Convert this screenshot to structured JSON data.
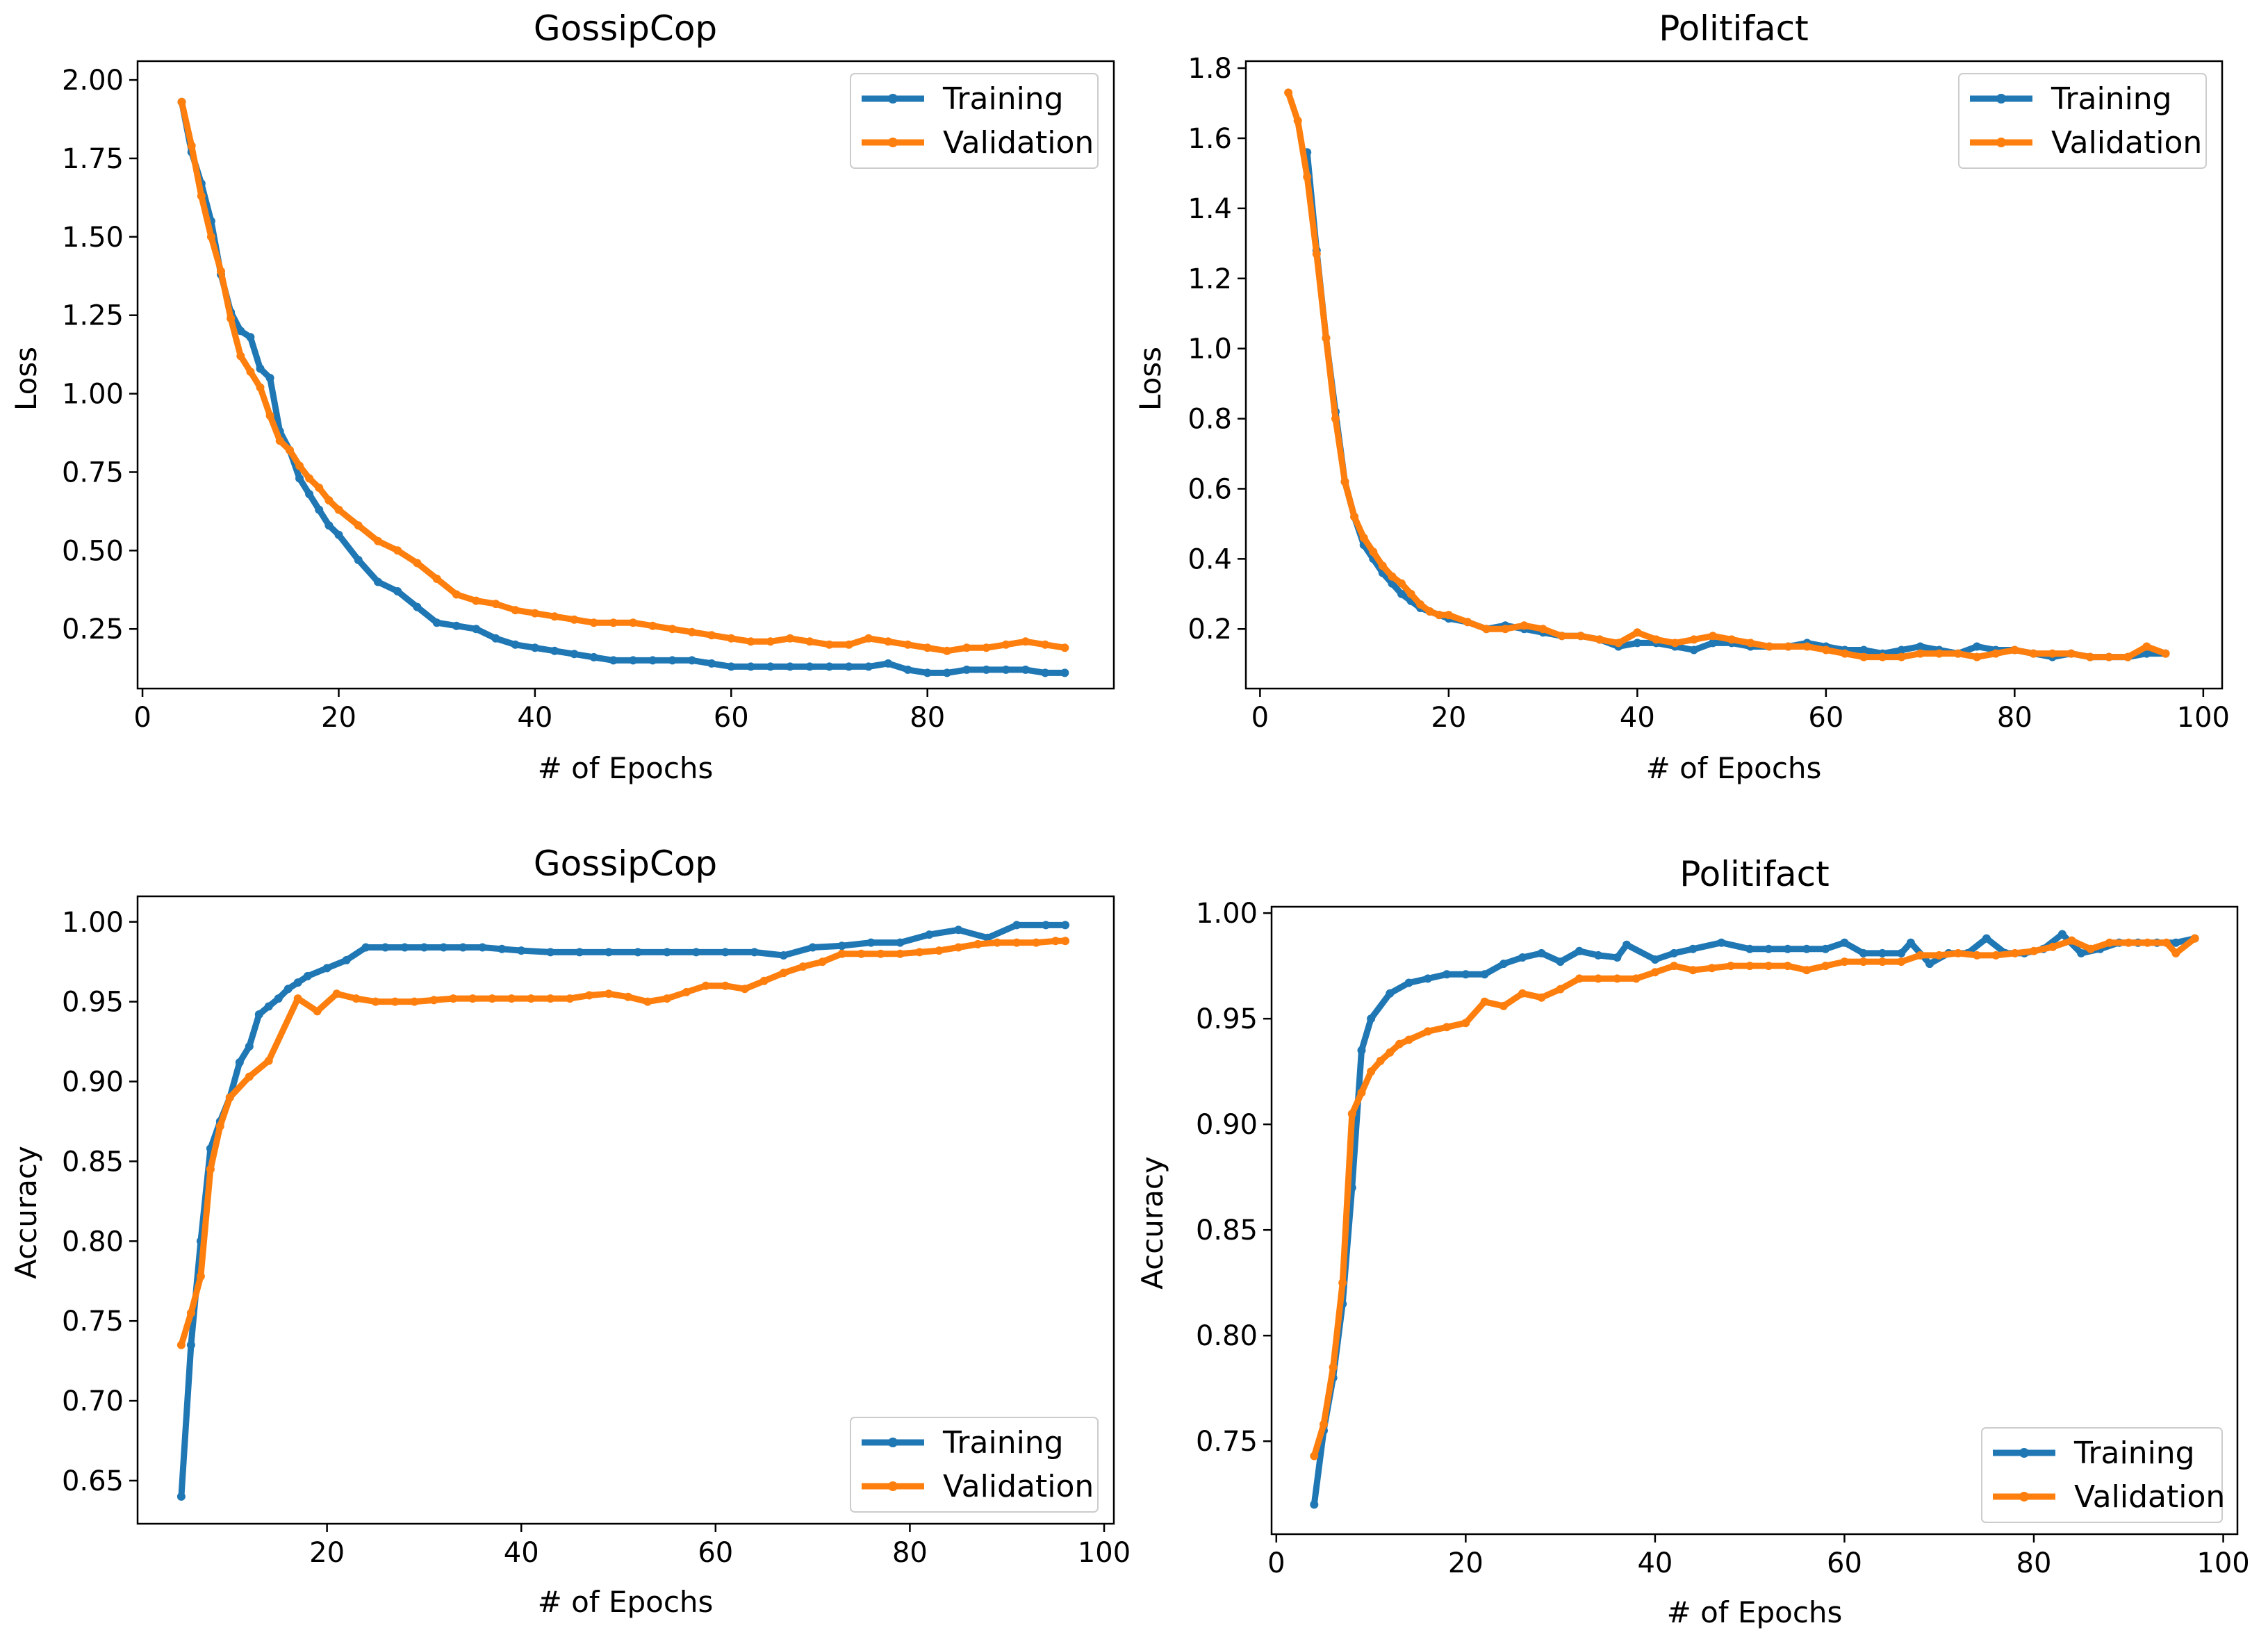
{
  "colors": {
    "training": "#1f77b4",
    "validation": "#ff7f0e",
    "axes": "#000000",
    "background": "#ffffff"
  },
  "chart_data": [
    {
      "type": "line",
      "title": "GossipCop",
      "xlabel": "# of Epochs",
      "ylabel": "Loss",
      "xlim": [
        -0.5,
        99
      ],
      "ylim": [
        0.06,
        2.06
      ],
      "xticks": [
        0,
        20,
        40,
        60,
        80
      ],
      "xtick_labels": [
        "0",
        "20",
        "40",
        "60",
        "80"
      ],
      "yticks": [
        0.25,
        0.5,
        0.75,
        1.0,
        1.25,
        1.5,
        1.75,
        2.0
      ],
      "ytick_labels": [
        "0.25",
        "0.50",
        "0.75",
        "1.00",
        "1.25",
        "1.50",
        "1.75",
        "2.00"
      ],
      "legend_position": "top-right",
      "grid": false,
      "series": [
        {
          "name": "Training",
          "color": "#1f77b4",
          "x": [
            4,
            5,
            6,
            7,
            8,
            9,
            10,
            11,
            12,
            13,
            14,
            15,
            16,
            17,
            18,
            19,
            20,
            22,
            24,
            26,
            28,
            30,
            32,
            34,
            36,
            38,
            40,
            42,
            44,
            46,
            48,
            50,
            52,
            54,
            56,
            58,
            60,
            62,
            64,
            66,
            68,
            70,
            72,
            74,
            76,
            78,
            80,
            82,
            84,
            86,
            88,
            90,
            92,
            94
          ],
          "y": [
            1.93,
            1.77,
            1.67,
            1.55,
            1.38,
            1.26,
            1.2,
            1.18,
            1.08,
            1.05,
            0.88,
            0.82,
            0.73,
            0.68,
            0.63,
            0.58,
            0.55,
            0.47,
            0.4,
            0.37,
            0.32,
            0.27,
            0.26,
            0.25,
            0.22,
            0.2,
            0.19,
            0.18,
            0.17,
            0.16,
            0.15,
            0.15,
            0.15,
            0.15,
            0.15,
            0.14,
            0.13,
            0.13,
            0.13,
            0.13,
            0.13,
            0.13,
            0.13,
            0.13,
            0.14,
            0.12,
            0.11,
            0.11,
            0.12,
            0.12,
            0.12,
            0.12,
            0.11,
            0.11
          ]
        },
        {
          "name": "Validation",
          "color": "#ff7f0e",
          "x": [
            4,
            5,
            6,
            7,
            8,
            9,
            10,
            11,
            12,
            13,
            14,
            15,
            16,
            17,
            18,
            19,
            20,
            22,
            24,
            26,
            28,
            30,
            32,
            34,
            36,
            38,
            40,
            42,
            44,
            46,
            48,
            50,
            52,
            54,
            56,
            58,
            60,
            62,
            64,
            66,
            68,
            70,
            72,
            74,
            76,
            78,
            80,
            82,
            84,
            86,
            88,
            90,
            92,
            94
          ],
          "y": [
            1.93,
            1.79,
            1.63,
            1.5,
            1.39,
            1.24,
            1.12,
            1.07,
            1.02,
            0.93,
            0.85,
            0.82,
            0.77,
            0.73,
            0.7,
            0.66,
            0.63,
            0.58,
            0.53,
            0.5,
            0.46,
            0.41,
            0.36,
            0.34,
            0.33,
            0.31,
            0.3,
            0.29,
            0.28,
            0.27,
            0.27,
            0.27,
            0.26,
            0.25,
            0.24,
            0.23,
            0.22,
            0.21,
            0.21,
            0.22,
            0.21,
            0.2,
            0.2,
            0.22,
            0.21,
            0.2,
            0.19,
            0.18,
            0.19,
            0.19,
            0.2,
            0.21,
            0.2,
            0.19
          ]
        }
      ]
    },
    {
      "type": "line",
      "title": "Politifact",
      "xlabel": "# of Epochs",
      "ylabel": "Loss",
      "xlim": [
        -1.5,
        102
      ],
      "ylim": [
        0.03,
        1.82
      ],
      "xticks": [
        0,
        20,
        40,
        60,
        80,
        100
      ],
      "xtick_labels": [
        "0",
        "20",
        "40",
        "60",
        "80",
        "100"
      ],
      "yticks": [
        0.2,
        0.4,
        0.6,
        0.8,
        1.0,
        1.2,
        1.4,
        1.6,
        1.8
      ],
      "ytick_labels": [
        "0.2",
        "0.4",
        "0.6",
        "0.8",
        "1.0",
        "1.2",
        "1.4",
        "1.6",
        "1.8"
      ],
      "legend_position": "top-right",
      "grid": false,
      "series": [
        {
          "name": "Training",
          "color": "#1f77b4",
          "x": [
            5,
            6,
            7,
            8,
            9,
            10,
            11,
            12,
            13,
            14,
            15,
            16,
            17,
            18,
            19,
            20,
            22,
            24,
            26,
            28,
            30,
            32,
            34,
            36,
            38,
            40,
            42,
            44,
            46,
            48,
            50,
            52,
            54,
            56,
            58,
            60,
            62,
            64,
            66,
            68,
            70,
            72,
            74,
            76,
            78,
            80,
            82,
            84,
            86,
            88,
            90,
            92,
            94,
            96
          ],
          "y": [
            1.56,
            1.28,
            1.03,
            0.82,
            0.62,
            0.52,
            0.44,
            0.4,
            0.36,
            0.33,
            0.3,
            0.28,
            0.26,
            0.25,
            0.24,
            0.23,
            0.22,
            0.2,
            0.21,
            0.2,
            0.19,
            0.18,
            0.18,
            0.17,
            0.15,
            0.16,
            0.16,
            0.15,
            0.14,
            0.16,
            0.16,
            0.15,
            0.15,
            0.15,
            0.16,
            0.15,
            0.14,
            0.14,
            0.13,
            0.14,
            0.15,
            0.14,
            0.13,
            0.15,
            0.14,
            0.14,
            0.13,
            0.12,
            0.13,
            0.12,
            0.12,
            0.12,
            0.13,
            0.13
          ]
        },
        {
          "name": "Validation",
          "color": "#ff7f0e",
          "x": [
            3,
            4,
            5,
            6,
            7,
            8,
            9,
            10,
            11,
            12,
            13,
            14,
            15,
            16,
            17,
            18,
            19,
            20,
            22,
            24,
            26,
            28,
            30,
            32,
            34,
            36,
            38,
            40,
            42,
            44,
            46,
            48,
            50,
            52,
            54,
            56,
            58,
            60,
            62,
            64,
            66,
            68,
            70,
            72,
            74,
            76,
            78,
            80,
            82,
            84,
            86,
            88,
            90,
            92,
            94,
            96
          ],
          "y": [
            1.73,
            1.65,
            1.49,
            1.27,
            1.03,
            0.8,
            0.62,
            0.52,
            0.46,
            0.42,
            0.38,
            0.35,
            0.33,
            0.3,
            0.27,
            0.25,
            0.24,
            0.24,
            0.22,
            0.2,
            0.2,
            0.21,
            0.2,
            0.18,
            0.18,
            0.17,
            0.16,
            0.19,
            0.17,
            0.16,
            0.17,
            0.18,
            0.17,
            0.16,
            0.15,
            0.15,
            0.15,
            0.14,
            0.13,
            0.12,
            0.12,
            0.12,
            0.13,
            0.13,
            0.13,
            0.12,
            0.13,
            0.14,
            0.13,
            0.13,
            0.13,
            0.12,
            0.12,
            0.12,
            0.15,
            0.13
          ]
        }
      ]
    },
    {
      "type": "line",
      "title": "GossipCop",
      "xlabel": "# of Epochs",
      "ylabel": "Accuracy",
      "xlim": [
        0.5,
        101
      ],
      "ylim": [
        0.623,
        1.016
      ],
      "xticks": [
        20,
        40,
        60,
        80,
        100
      ],
      "xtick_labels": [
        "20",
        "40",
        "60",
        "80",
        "100"
      ],
      "yticks": [
        0.65,
        0.7,
        0.75,
        0.8,
        0.85,
        0.9,
        0.95,
        1.0
      ],
      "ytick_labels": [
        "0.65",
        "0.70",
        "0.75",
        "0.80",
        "0.85",
        "0.90",
        "0.95",
        "1.00"
      ],
      "legend_position": "bottom-right",
      "grid": false,
      "series": [
        {
          "name": "Training",
          "color": "#1f77b4",
          "x": [
            5,
            6,
            7,
            8,
            9,
            10,
            11,
            12,
            13,
            14,
            15,
            16,
            17,
            18,
            20,
            22,
            24,
            26,
            28,
            30,
            32,
            34,
            36,
            38,
            40,
            43,
            46,
            49,
            52,
            55,
            58,
            61,
            64,
            67,
            70,
            73,
            76,
            79,
            82,
            85,
            88,
            91,
            94,
            96
          ],
          "y": [
            0.64,
            0.735,
            0.8,
            0.858,
            0.875,
            0.89,
            0.912,
            0.922,
            0.942,
            0.947,
            0.952,
            0.958,
            0.962,
            0.966,
            0.971,
            0.976,
            0.984,
            0.984,
            0.984,
            0.984,
            0.984,
            0.984,
            0.984,
            0.983,
            0.982,
            0.981,
            0.981,
            0.981,
            0.981,
            0.981,
            0.981,
            0.981,
            0.981,
            0.979,
            0.984,
            0.985,
            0.987,
            0.987,
            0.992,
            0.995,
            0.99,
            0.998,
            0.998,
            0.998
          ]
        },
        {
          "name": "Validation",
          "color": "#ff7f0e",
          "x": [
            5,
            6,
            7,
            8,
            9,
            10,
            12,
            14,
            17,
            19,
            21,
            23,
            25,
            27,
            29,
            31,
            33,
            35,
            37,
            39,
            41,
            43,
            45,
            47,
            49,
            51,
            53,
            55,
            57,
            59,
            61,
            63,
            65,
            67,
            69,
            71,
            73,
            75,
            77,
            79,
            81,
            83,
            85,
            87,
            89,
            91,
            93,
            95,
            96
          ],
          "y": [
            0.735,
            0.755,
            0.778,
            0.845,
            0.872,
            0.89,
            0.903,
            0.913,
            0.952,
            0.944,
            0.955,
            0.952,
            0.95,
            0.95,
            0.95,
            0.951,
            0.952,
            0.952,
            0.952,
            0.952,
            0.952,
            0.952,
            0.952,
            0.954,
            0.955,
            0.953,
            0.95,
            0.952,
            0.956,
            0.96,
            0.96,
            0.958,
            0.963,
            0.968,
            0.972,
            0.975,
            0.98,
            0.98,
            0.98,
            0.98,
            0.981,
            0.982,
            0.984,
            0.986,
            0.987,
            0.987,
            0.987,
            0.988,
            0.988
          ]
        }
      ]
    },
    {
      "type": "line",
      "title": "Politifact",
      "xlabel": "# of Epochs",
      "ylabel": "Accuracy",
      "xlim": [
        -0.5,
        101.5
      ],
      "ylim": [
        0.706,
        1.003
      ],
      "xticks": [
        0,
        20,
        40,
        60,
        80,
        100
      ],
      "xtick_labels": [
        "0",
        "20",
        "40",
        "60",
        "80",
        "100"
      ],
      "yticks": [
        0.75,
        0.8,
        0.85,
        0.9,
        0.95,
        1.0
      ],
      "ytick_labels": [
        "0.75",
        "0.80",
        "0.85",
        "0.90",
        "0.95",
        "1.00"
      ],
      "legend_position": "bottom-right",
      "grid": false,
      "series": [
        {
          "name": "Training",
          "color": "#1f77b4",
          "x": [
            4,
            5,
            6,
            7,
            8,
            9,
            10,
            12,
            14,
            16,
            18,
            20,
            22,
            24,
            26,
            28,
            30,
            32,
            34,
            36,
            37,
            40,
            42,
            44,
            47,
            50,
            52,
            54,
            56,
            58,
            60,
            62,
            64,
            66,
            67,
            69,
            71,
            73,
            75,
            77,
            79,
            81,
            83,
            85,
            87,
            89,
            91,
            93,
            95,
            97
          ],
          "y": [
            0.72,
            0.755,
            0.78,
            0.815,
            0.87,
            0.935,
            0.95,
            0.962,
            0.967,
            0.969,
            0.971,
            0.971,
            0.971,
            0.976,
            0.979,
            0.981,
            0.977,
            0.982,
            0.98,
            0.979,
            0.985,
            0.978,
            0.981,
            0.983,
            0.986,
            0.983,
            0.983,
            0.983,
            0.983,
            0.983,
            0.986,
            0.981,
            0.981,
            0.981,
            0.986,
            0.976,
            0.981,
            0.981,
            0.988,
            0.981,
            0.981,
            0.983,
            0.99,
            0.981,
            0.983,
            0.986,
            0.986,
            0.986,
            0.986,
            0.988
          ]
        },
        {
          "name": "Validation",
          "color": "#ff7f0e",
          "x": [
            4,
            5,
            6,
            7,
            8,
            9,
            10,
            11,
            12,
            13,
            14,
            16,
            18,
            20,
            22,
            24,
            26,
            28,
            30,
            32,
            34,
            36,
            38,
            40,
            42,
            44,
            46,
            48,
            50,
            52,
            54,
            56,
            58,
            60,
            62,
            64,
            66,
            68,
            70,
            72,
            74,
            76,
            78,
            80,
            82,
            84,
            86,
            88,
            90,
            92,
            94,
            95,
            97
          ],
          "y": [
            0.743,
            0.758,
            0.785,
            0.825,
            0.905,
            0.915,
            0.925,
            0.93,
            0.934,
            0.938,
            0.94,
            0.944,
            0.946,
            0.948,
            0.958,
            0.956,
            0.962,
            0.96,
            0.964,
            0.969,
            0.969,
            0.969,
            0.969,
            0.972,
            0.975,
            0.973,
            0.974,
            0.975,
            0.975,
            0.975,
            0.975,
            0.973,
            0.975,
            0.977,
            0.977,
            0.977,
            0.977,
            0.98,
            0.98,
            0.981,
            0.98,
            0.98,
            0.981,
            0.982,
            0.984,
            0.987,
            0.983,
            0.986,
            0.986,
            0.986,
            0.986,
            0.981,
            0.988
          ]
        }
      ]
    }
  ]
}
